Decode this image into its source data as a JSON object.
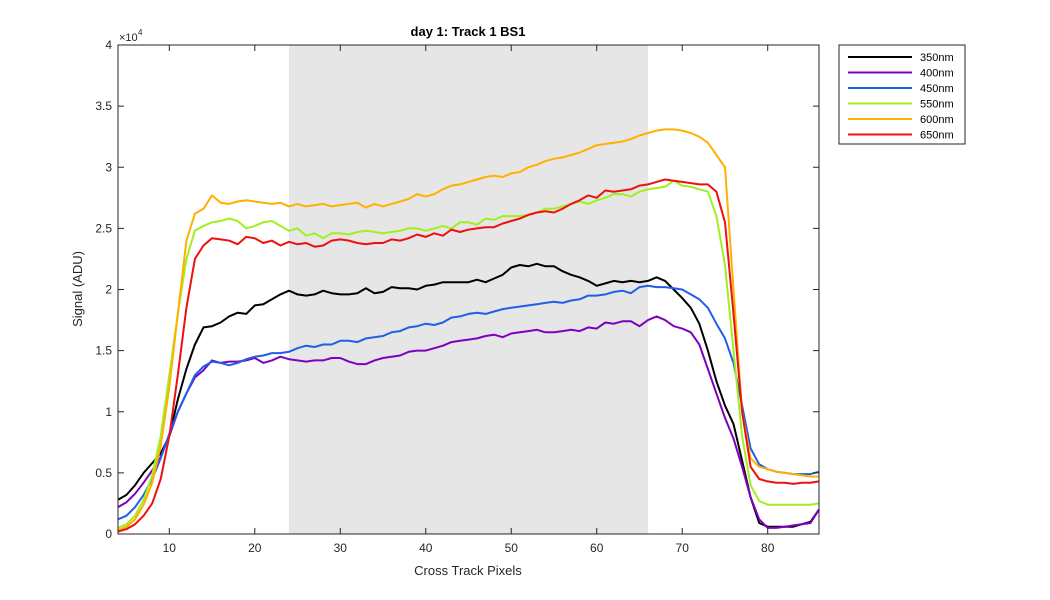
{
  "chart_data": {
    "type": "line",
    "title": "day 1: Track 1  BS1",
    "xlabel": "Cross Track Pixels",
    "ylabel": "Signal (ADU)",
    "y_exponent_label": "×10",
    "y_exponent_power": "4",
    "xlim": [
      4,
      86
    ],
    "ylim": [
      0,
      4
    ],
    "x_ticks": [
      10,
      20,
      30,
      40,
      50,
      60,
      70,
      80
    ],
    "x_tick_labels": [
      "10",
      "20",
      "30",
      "40",
      "50",
      "60",
      "70",
      "80"
    ],
    "y_ticks": [
      0,
      0.5,
      1,
      1.5,
      2,
      2.5,
      3,
      3.5,
      4
    ],
    "y_tick_labels": [
      "0",
      "0.5",
      "1",
      "1.5",
      "2",
      "2.5",
      "3",
      "3.5",
      "4"
    ],
    "shaded_region": {
      "x_start": 24,
      "x_end": 66,
      "color": "#e6e6e6"
    },
    "grid": false,
    "legend_position": "outside-top-right",
    "series": [
      {
        "name": "350nm",
        "color": "#000000",
        "x": [
          4,
          5,
          6,
          7,
          8,
          9,
          10,
          11,
          12,
          13,
          14,
          15,
          16,
          17,
          18,
          19,
          20,
          21,
          22,
          23,
          24,
          25,
          26,
          27,
          28,
          29,
          30,
          31,
          32,
          33,
          34,
          35,
          36,
          37,
          38,
          39,
          40,
          41,
          42,
          43,
          44,
          45,
          46,
          47,
          48,
          49,
          50,
          51,
          52,
          53,
          54,
          55,
          56,
          57,
          58,
          59,
          60,
          61,
          62,
          63,
          64,
          65,
          66,
          67,
          68,
          69,
          70,
          71,
          72,
          73,
          74,
          75,
          76,
          77,
          78,
          79,
          80,
          81,
          82,
          83,
          84,
          85,
          86
        ],
        "y": [
          0.28,
          0.32,
          0.4,
          0.5,
          0.58,
          0.66,
          0.8,
          1.1,
          1.35,
          1.55,
          1.69,
          1.7,
          1.73,
          1.78,
          1.81,
          1.8,
          1.87,
          1.88,
          1.92,
          1.96,
          1.99,
          1.96,
          1.95,
          1.96,
          1.99,
          1.97,
          1.96,
          1.96,
          1.97,
          2.01,
          1.97,
          1.98,
          2.02,
          2.01,
          2.01,
          2.0,
          2.03,
          2.04,
          2.06,
          2.06,
          2.06,
          2.06,
          2.08,
          2.06,
          2.09,
          2.12,
          2.18,
          2.2,
          2.19,
          2.21,
          2.19,
          2.19,
          2.15,
          2.12,
          2.1,
          2.07,
          2.03,
          2.05,
          2.07,
          2.06,
          2.07,
          2.06,
          2.07,
          2.1,
          2.07,
          2.0,
          1.93,
          1.85,
          1.72,
          1.5,
          1.25,
          1.05,
          0.9,
          0.6,
          0.3,
          0.09,
          0.06,
          0.06,
          0.06,
          0.06,
          0.08,
          0.1,
          0.2
        ]
      },
      {
        "name": "400nm",
        "color": "#8000c0",
        "x": [
          4,
          5,
          6,
          7,
          8,
          9,
          10,
          11,
          12,
          13,
          14,
          15,
          16,
          17,
          18,
          19,
          20,
          21,
          22,
          23,
          24,
          25,
          26,
          27,
          28,
          29,
          30,
          31,
          32,
          33,
          34,
          35,
          36,
          37,
          38,
          39,
          40,
          41,
          42,
          43,
          44,
          45,
          46,
          47,
          48,
          49,
          50,
          51,
          52,
          53,
          54,
          55,
          56,
          57,
          58,
          59,
          60,
          61,
          62,
          63,
          64,
          65,
          66,
          67,
          68,
          69,
          70,
          71,
          72,
          73,
          74,
          75,
          76,
          77,
          78,
          79,
          80,
          81,
          82,
          83,
          84,
          85,
          86
        ],
        "y": [
          0.22,
          0.26,
          0.33,
          0.42,
          0.52,
          0.63,
          0.8,
          1.0,
          1.15,
          1.28,
          1.34,
          1.42,
          1.4,
          1.41,
          1.41,
          1.42,
          1.44,
          1.4,
          1.42,
          1.45,
          1.43,
          1.42,
          1.41,
          1.42,
          1.42,
          1.44,
          1.44,
          1.41,
          1.39,
          1.39,
          1.42,
          1.44,
          1.45,
          1.46,
          1.49,
          1.5,
          1.5,
          1.52,
          1.54,
          1.57,
          1.58,
          1.59,
          1.6,
          1.62,
          1.63,
          1.61,
          1.64,
          1.65,
          1.66,
          1.67,
          1.65,
          1.65,
          1.66,
          1.67,
          1.66,
          1.69,
          1.68,
          1.73,
          1.72,
          1.74,
          1.74,
          1.7,
          1.75,
          1.78,
          1.75,
          1.7,
          1.68,
          1.65,
          1.55,
          1.35,
          1.15,
          0.95,
          0.78,
          0.55,
          0.3,
          0.12,
          0.05,
          0.05,
          0.06,
          0.07,
          0.08,
          0.09,
          0.2
        ]
      },
      {
        "name": "450nm",
        "color": "#1f5fe8",
        "x": [
          4,
          5,
          6,
          7,
          8,
          9,
          10,
          11,
          12,
          13,
          14,
          15,
          16,
          17,
          18,
          19,
          20,
          21,
          22,
          23,
          24,
          25,
          26,
          27,
          28,
          29,
          30,
          31,
          32,
          33,
          34,
          35,
          36,
          37,
          38,
          39,
          40,
          41,
          42,
          43,
          44,
          45,
          46,
          47,
          48,
          49,
          50,
          51,
          52,
          53,
          54,
          55,
          56,
          57,
          58,
          59,
          60,
          61,
          62,
          63,
          64,
          65,
          66,
          67,
          68,
          69,
          70,
          71,
          72,
          73,
          74,
          75,
          76,
          77,
          78,
          79,
          80,
          81,
          82,
          83,
          84,
          85,
          86
        ],
        "y": [
          0.12,
          0.15,
          0.22,
          0.32,
          0.45,
          0.62,
          0.82,
          1.0,
          1.15,
          1.3,
          1.37,
          1.41,
          1.4,
          1.38,
          1.4,
          1.43,
          1.45,
          1.46,
          1.48,
          1.48,
          1.49,
          1.52,
          1.54,
          1.53,
          1.55,
          1.55,
          1.58,
          1.58,
          1.57,
          1.6,
          1.61,
          1.62,
          1.65,
          1.66,
          1.69,
          1.7,
          1.72,
          1.71,
          1.73,
          1.77,
          1.78,
          1.8,
          1.81,
          1.8,
          1.82,
          1.84,
          1.85,
          1.86,
          1.87,
          1.88,
          1.89,
          1.9,
          1.89,
          1.91,
          1.92,
          1.95,
          1.95,
          1.96,
          1.98,
          1.99,
          1.97,
          2.02,
          2.03,
          2.02,
          2.02,
          2.01,
          2.0,
          1.96,
          1.92,
          1.85,
          1.72,
          1.6,
          1.4,
          1.05,
          0.7,
          0.57,
          0.53,
          0.51,
          0.5,
          0.49,
          0.49,
          0.49,
          0.51
        ]
      },
      {
        "name": "550nm",
        "color": "#a0f020",
        "x": [
          4,
          5,
          6,
          7,
          8,
          9,
          10,
          11,
          12,
          13,
          14,
          15,
          16,
          17,
          18,
          19,
          20,
          21,
          22,
          23,
          24,
          25,
          26,
          27,
          28,
          29,
          30,
          31,
          32,
          33,
          34,
          35,
          36,
          37,
          38,
          39,
          40,
          41,
          42,
          43,
          44,
          45,
          46,
          47,
          48,
          49,
          50,
          51,
          52,
          53,
          54,
          55,
          56,
          57,
          58,
          59,
          60,
          61,
          62,
          63,
          64,
          65,
          66,
          67,
          68,
          69,
          70,
          71,
          72,
          73,
          74,
          75,
          76,
          77,
          78,
          79,
          80,
          81,
          82,
          83,
          84,
          85,
          86
        ],
        "y": [
          0.05,
          0.08,
          0.15,
          0.28,
          0.48,
          0.8,
          1.3,
          1.8,
          2.25,
          2.48,
          2.52,
          2.55,
          2.56,
          2.58,
          2.56,
          2.5,
          2.52,
          2.55,
          2.56,
          2.52,
          2.48,
          2.5,
          2.44,
          2.46,
          2.42,
          2.46,
          2.46,
          2.45,
          2.47,
          2.48,
          2.47,
          2.46,
          2.47,
          2.48,
          2.5,
          2.5,
          2.48,
          2.5,
          2.52,
          2.5,
          2.55,
          2.55,
          2.53,
          2.58,
          2.57,
          2.6,
          2.6,
          2.6,
          2.61,
          2.63,
          2.66,
          2.66,
          2.68,
          2.7,
          2.72,
          2.7,
          2.73,
          2.75,
          2.78,
          2.78,
          2.76,
          2.8,
          2.82,
          2.83,
          2.84,
          2.89,
          2.85,
          2.84,
          2.82,
          2.8,
          2.6,
          2.2,
          1.5,
          0.8,
          0.4,
          0.27,
          0.24,
          0.24,
          0.24,
          0.24,
          0.24,
          0.24,
          0.25
        ]
      },
      {
        "name": "600nm",
        "color": "#ffb000",
        "x": [
          4,
          5,
          6,
          7,
          8,
          9,
          10,
          11,
          12,
          13,
          14,
          15,
          16,
          17,
          18,
          19,
          20,
          21,
          22,
          23,
          24,
          25,
          26,
          27,
          28,
          29,
          30,
          31,
          32,
          33,
          34,
          35,
          36,
          37,
          38,
          39,
          40,
          41,
          42,
          43,
          44,
          45,
          46,
          47,
          48,
          49,
          50,
          51,
          52,
          53,
          54,
          55,
          56,
          57,
          58,
          59,
          60,
          61,
          62,
          63,
          64,
          65,
          66,
          67,
          68,
          69,
          70,
          71,
          72,
          73,
          74,
          75,
          76,
          77,
          78,
          79,
          80,
          81,
          82,
          83,
          84,
          85,
          86
        ],
        "y": [
          0.03,
          0.06,
          0.12,
          0.24,
          0.42,
          0.72,
          1.2,
          1.8,
          2.4,
          2.62,
          2.66,
          2.77,
          2.71,
          2.7,
          2.72,
          2.73,
          2.72,
          2.71,
          2.7,
          2.71,
          2.68,
          2.7,
          2.68,
          2.69,
          2.7,
          2.68,
          2.69,
          2.7,
          2.71,
          2.67,
          2.7,
          2.68,
          2.7,
          2.72,
          2.74,
          2.78,
          2.76,
          2.78,
          2.82,
          2.85,
          2.86,
          2.88,
          2.9,
          2.92,
          2.93,
          2.92,
          2.95,
          2.96,
          3.0,
          3.02,
          3.05,
          3.07,
          3.08,
          3.1,
          3.12,
          3.15,
          3.18,
          3.19,
          3.2,
          3.21,
          3.23,
          3.26,
          3.28,
          3.3,
          3.31,
          3.31,
          3.3,
          3.28,
          3.25,
          3.2,
          3.1,
          3.0,
          2.0,
          1.0,
          0.62,
          0.55,
          0.53,
          0.51,
          0.5,
          0.49,
          0.48,
          0.47,
          0.47
        ]
      },
      {
        "name": "650nm",
        "color": "#ee1010",
        "x": [
          4,
          5,
          6,
          7,
          8,
          9,
          10,
          11,
          12,
          13,
          14,
          15,
          16,
          17,
          18,
          19,
          20,
          21,
          22,
          23,
          24,
          25,
          26,
          27,
          28,
          29,
          30,
          31,
          32,
          33,
          34,
          35,
          36,
          37,
          38,
          39,
          40,
          41,
          42,
          43,
          44,
          45,
          46,
          47,
          48,
          49,
          50,
          51,
          52,
          53,
          54,
          55,
          56,
          57,
          58,
          59,
          60,
          61,
          62,
          63,
          64,
          65,
          66,
          67,
          68,
          69,
          70,
          71,
          72,
          73,
          74,
          75,
          76,
          77,
          78,
          79,
          80,
          81,
          82,
          83,
          84,
          85,
          86
        ],
        "y": [
          0.02,
          0.04,
          0.08,
          0.15,
          0.25,
          0.45,
          0.8,
          1.3,
          1.85,
          2.25,
          2.36,
          2.42,
          2.41,
          2.4,
          2.37,
          2.43,
          2.42,
          2.38,
          2.4,
          2.36,
          2.39,
          2.37,
          2.38,
          2.35,
          2.36,
          2.4,
          2.41,
          2.4,
          2.38,
          2.37,
          2.38,
          2.38,
          2.41,
          2.4,
          2.42,
          2.45,
          2.43,
          2.46,
          2.44,
          2.49,
          2.47,
          2.49,
          2.5,
          2.51,
          2.51,
          2.54,
          2.56,
          2.58,
          2.61,
          2.63,
          2.64,
          2.63,
          2.66,
          2.7,
          2.73,
          2.77,
          2.75,
          2.81,
          2.8,
          2.81,
          2.82,
          2.85,
          2.86,
          2.88,
          2.9,
          2.89,
          2.88,
          2.87,
          2.86,
          2.86,
          2.8,
          2.55,
          1.8,
          1.0,
          0.55,
          0.45,
          0.43,
          0.42,
          0.42,
          0.41,
          0.42,
          0.42,
          0.43
        ]
      }
    ]
  }
}
